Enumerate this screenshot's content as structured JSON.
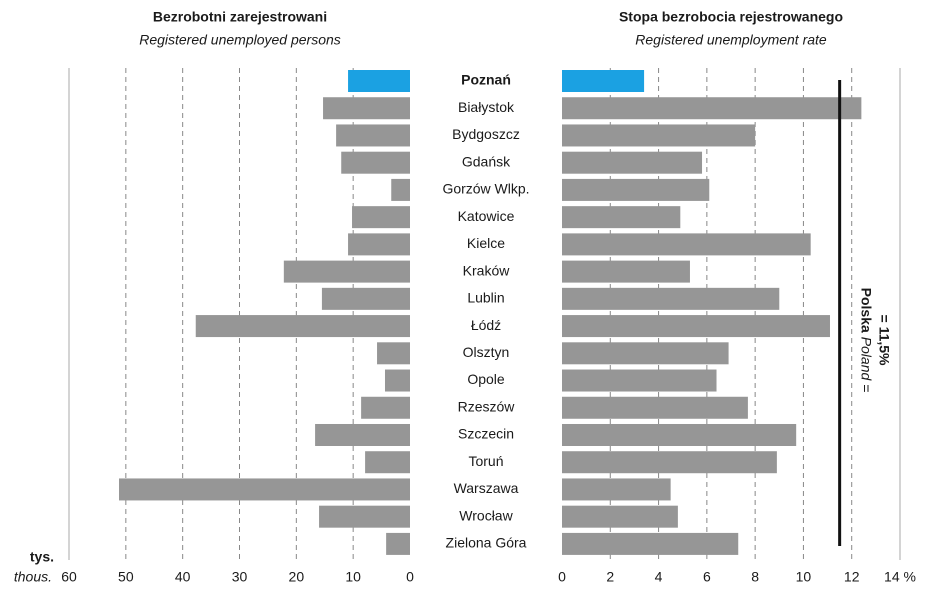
{
  "chart_data": [
    {
      "type": "barh",
      "title": "Bezrobotni zarejestrowani",
      "subtitle": "Registered unemployed persons",
      "categories": [
        "Poznań",
        "Białystok",
        "Bydgoszcz",
        "Gdańsk",
        "Gorzów Wlkp.",
        "Katowice",
        "Kielce",
        "Kraków",
        "Lublin",
        "Łódź",
        "Olsztyn",
        "Opole",
        "Rzeszów",
        "Szczecin",
        "Toruń",
        "Warszawa",
        "Wrocław",
        "Zielona Góra"
      ],
      "values": [
        10.9,
        15.3,
        13.0,
        12.1,
        3.3,
        10.2,
        10.9,
        22.2,
        15.5,
        37.7,
        5.8,
        4.4,
        8.6,
        16.7,
        7.9,
        51.2,
        16.0,
        4.2
      ],
      "color": "#969696",
      "highlight_color": "#1ba1e2",
      "highlight_index": 0,
      "xlim": [
        60,
        0
      ],
      "xticks": [
        60,
        50,
        40,
        30,
        20,
        10,
        0
      ],
      "grid": true,
      "unit_label": "tys.",
      "unit_label_en": "thous."
    },
    {
      "type": "barh",
      "title": "Stopa bezrobocia rejestrowanego",
      "subtitle": "Registered unemployment rate",
      "values": [
        3.4,
        12.4,
        8.0,
        5.8,
        6.1,
        4.9,
        10.3,
        5.3,
        9.0,
        11.1,
        6.9,
        6.4,
        7.7,
        9.7,
        8.9,
        4.5,
        4.8,
        7.3
      ],
      "color": "#969696",
      "highlight_color": "#1ba1e2",
      "highlight_index": 0,
      "xlim": [
        0,
        14
      ],
      "xticks": [
        0,
        2,
        4,
        6,
        8,
        10,
        12,
        {
          "value": 14,
          "label": "14 %"
        }
      ],
      "grid": true,
      "reference_line": {
        "value": 11.5,
        "label": "Polska",
        "label_en": "Poland =",
        "value_label": "= 11,5%"
      }
    }
  ]
}
